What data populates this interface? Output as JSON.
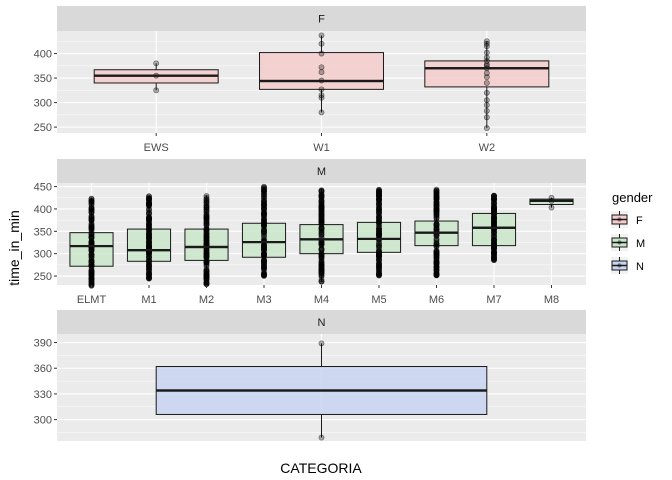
{
  "chart_data": {
    "type": "boxplot",
    "xlabel": "CATEGORIA",
    "ylabel": "time_in_min",
    "legend": {
      "title": "gender",
      "position": "right",
      "entries": [
        {
          "label": "F",
          "fill": "#f4cccc"
        },
        {
          "label": "M",
          "fill": "#c9e6c9"
        },
        {
          "label": "N",
          "fill": "#c8d4f0"
        }
      ]
    },
    "colors": {
      "panel_bg": "#ebebeb",
      "strip_bg": "#d9d9d9",
      "grid": "#ffffff",
      "F": "#f4cccc",
      "M": "#c9e6c9",
      "N": "#c8d4f0"
    },
    "panels": [
      {
        "strip": "F",
        "fill_key": "F",
        "ylim": [
          238,
          446
        ],
        "yticks": [
          250,
          300,
          350,
          400
        ],
        "categories": [
          {
            "label": "EWS",
            "min": 325,
            "q1": 340,
            "median": 355,
            "q3": 367,
            "max": 380,
            "outliers": [],
            "points": [
              325,
              355,
              380
            ]
          },
          {
            "label": "W1",
            "min": 280,
            "q1": 327,
            "median": 344,
            "q3": 402,
            "max": 437,
            "outliers": [],
            "points": [
              280,
              310,
              315,
              327,
              345,
              362,
              372,
              400,
              420,
              437
            ]
          },
          {
            "label": "W2",
            "min": 248,
            "q1": 332,
            "median": 370,
            "q3": 385,
            "max": 425,
            "outliers": [],
            "points": [
              248,
              270,
              283,
              295,
              305,
              320,
              340,
              352,
              360,
              370,
              375,
              378,
              385,
              392,
              402,
              415,
              420,
              425
            ]
          }
        ]
      },
      {
        "strip": "M",
        "fill_key": "M",
        "ylim": [
          230,
          458
        ],
        "yticks": [
          250,
          300,
          350,
          400,
          450
        ],
        "categories": [
          {
            "label": "ELMT",
            "min": 228,
            "q1": 272,
            "median": 317,
            "q3": 347,
            "max": 425,
            "outliers": [],
            "points": []
          },
          {
            "label": "M1",
            "min": 240,
            "q1": 283,
            "median": 308,
            "q3": 355,
            "max": 430,
            "outliers": [],
            "points": []
          },
          {
            "label": "M2",
            "min": 232,
            "q1": 285,
            "median": 315,
            "q3": 355,
            "max": 430,
            "outliers": [],
            "points": []
          },
          {
            "label": "M3",
            "min": 250,
            "q1": 292,
            "median": 326,
            "q3": 368,
            "max": 450,
            "outliers": [],
            "points": []
          },
          {
            "label": "M4",
            "min": 237,
            "q1": 300,
            "median": 332,
            "q3": 365,
            "max": 445,
            "outliers": [],
            "points": []
          },
          {
            "label": "M5",
            "min": 250,
            "q1": 303,
            "median": 333,
            "q3": 370,
            "max": 445,
            "outliers": [],
            "points": []
          },
          {
            "label": "M6",
            "min": 250,
            "q1": 318,
            "median": 347,
            "q3": 373,
            "max": 445,
            "outliers": [],
            "points": []
          },
          {
            "label": "M7",
            "min": 285,
            "q1": 318,
            "median": 358,
            "q3": 390,
            "max": 432,
            "outliers": [],
            "points": []
          },
          {
            "label": "M8",
            "min": 403,
            "q1": 410,
            "median": 418,
            "q3": 422,
            "max": 425,
            "outliers": [],
            "points": [
              403,
              418,
              425
            ]
          }
        ]
      },
      {
        "strip": "N",
        "fill_key": "N",
        "ylim": [
          275,
          400
        ],
        "yticks": [
          300,
          330,
          360,
          390
        ],
        "categories": [
          {
            "label": "",
            "min": 279,
            "q1": 306,
            "median": 334,
            "q3": 362,
            "max": 389,
            "outliers": [],
            "points": [
              279,
              389
            ]
          }
        ]
      }
    ]
  }
}
